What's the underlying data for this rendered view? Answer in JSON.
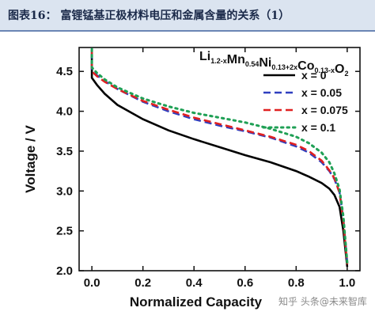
{
  "header": {
    "title": "图表16：  富锂锰基正极材料电压和金属含量的关系（1）"
  },
  "watermark": "知乎 头条@未来智库",
  "chart_data": {
    "type": "line",
    "title": "",
    "formula": {
      "parts": [
        {
          "text": "Li",
          "sub": "1.2-x"
        },
        {
          "text": "Mn",
          "sub": "0.54"
        },
        {
          "text": "Ni",
          "sub": "0.13+2x"
        },
        {
          "text": "Co",
          "sub": "0.13-x"
        },
        {
          "text": "O",
          "sub": "2"
        }
      ]
    },
    "xlabel": "Normalized Capacity",
    "ylabel": "Voltage / V",
    "xlim": [
      -0.05,
      1.05
    ],
    "ylim": [
      2.0,
      4.8
    ],
    "xticks": [
      "0.0",
      "0.2",
      "0.4",
      "0.6",
      "0.8",
      "1.0"
    ],
    "yticks": [
      "2.0",
      "2.5",
      "3.0",
      "3.5",
      "4.0",
      "4.5"
    ],
    "grid": false,
    "legend_position": "top-right",
    "series": [
      {
        "name": "x = 0",
        "color": "#000000",
        "dash": "solid",
        "x": [
          0.0,
          0.0,
          0.0,
          0.02,
          0.05,
          0.1,
          0.2,
          0.3,
          0.4,
          0.5,
          0.6,
          0.7,
          0.8,
          0.85,
          0.9,
          0.93,
          0.95,
          0.97,
          0.985,
          1.0
        ],
        "y": [
          4.72,
          4.55,
          4.42,
          4.33,
          4.22,
          4.08,
          3.9,
          3.76,
          3.65,
          3.55,
          3.45,
          3.36,
          3.25,
          3.18,
          3.1,
          3.03,
          2.95,
          2.8,
          2.5,
          2.05
        ]
      },
      {
        "name": "x = 0.05",
        "color": "#2f3fbf",
        "dash": "dashed",
        "x": [
          0.0,
          0.0,
          0.0,
          0.02,
          0.05,
          0.1,
          0.2,
          0.3,
          0.4,
          0.5,
          0.6,
          0.7,
          0.8,
          0.85,
          0.9,
          0.93,
          0.95,
          0.97,
          0.985,
          1.0
        ],
        "y": [
          4.75,
          4.6,
          4.52,
          4.45,
          4.38,
          4.28,
          4.12,
          4.0,
          3.9,
          3.82,
          3.75,
          3.67,
          3.56,
          3.48,
          3.36,
          3.25,
          3.15,
          2.98,
          2.65,
          2.1
        ]
      },
      {
        "name": "x = 0.075",
        "color": "#e02020",
        "dash": "dashed",
        "x": [
          0.0,
          0.0,
          0.0,
          0.02,
          0.05,
          0.1,
          0.2,
          0.3,
          0.4,
          0.5,
          0.6,
          0.7,
          0.8,
          0.85,
          0.9,
          0.93,
          0.95,
          0.97,
          0.985,
          1.0
        ],
        "y": [
          4.76,
          4.58,
          4.5,
          4.44,
          4.37,
          4.28,
          4.13,
          4.02,
          3.92,
          3.84,
          3.76,
          3.68,
          3.58,
          3.5,
          3.38,
          3.26,
          3.16,
          2.98,
          2.62,
          2.08
        ]
      },
      {
        "name": "x = 0.1",
        "color": "#1fa055",
        "dash": "dotted",
        "x": [
          0.0,
          0.0,
          0.0,
          0.02,
          0.05,
          0.1,
          0.2,
          0.3,
          0.4,
          0.5,
          0.6,
          0.7,
          0.8,
          0.85,
          0.9,
          0.93,
          0.95,
          0.97,
          0.985,
          1.0
        ],
        "y": [
          4.78,
          4.62,
          4.55,
          4.48,
          4.4,
          4.3,
          4.16,
          4.06,
          3.98,
          3.92,
          3.86,
          3.78,
          3.68,
          3.6,
          3.48,
          3.36,
          3.22,
          3.02,
          2.68,
          2.1
        ]
      }
    ]
  }
}
